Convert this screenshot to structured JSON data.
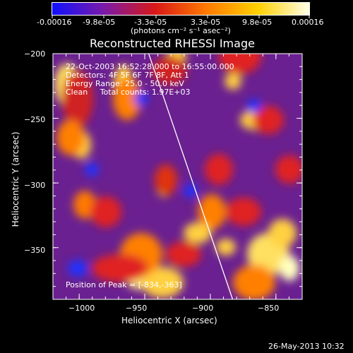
{
  "colorbar": {
    "tick_labels": [
      "-0.00016",
      "-9.8e-05",
      "-3.3e-05",
      "3.3e-05",
      "9.8e-05",
      "0.00016"
    ],
    "unit_label": "(photons cm⁻² s⁻¹ asec⁻²)",
    "colors": [
      "#1010ff",
      "#7a1aa8",
      "#d81818",
      "#ff7a00",
      "#ffd000",
      "#ffffe8"
    ]
  },
  "chart_data": {
    "type": "heatmap",
    "title": "Reconstructed RHESSI Image",
    "xlabel": "Heliocentric X (arcsec)",
    "ylabel": "Heliocentric Y (arcsec)",
    "xlim": [
      -1020,
      -830
    ],
    "ylim": [
      -390,
      -200
    ],
    "x_ticks": [
      -1000,
      -950,
      -900,
      -850
    ],
    "y_ticks": [
      -200,
      -250,
      -300,
      -350
    ],
    "x_tick_labels": [
      "−1000",
      "−950",
      "−900",
      "−850"
    ],
    "y_tick_labels": [
      "−200",
      "−250",
      "−300",
      "−350"
    ],
    "annotations": [
      "22-Oct-2003 16:52:28.000 to 16:55:00.000",
      "Detectors: 4F 5F 6F 7F 8F, Att 1",
      "Energy Range: 25.0 - 50.0 keV",
      "Clean     Total counts: 1.97E+03"
    ],
    "peak_label": "Position of Peak = [-834,-363]",
    "peak_position": [
      -834,
      -363
    ],
    "limb_line": [
      [
        -947,
        -200
      ],
      [
        -883,
        -390
      ]
    ],
    "colormap": "red-temperature",
    "value_range": [
      -0.00016,
      0.00016
    ]
  },
  "footer": {
    "timestamp": "26-May-2013 10:32"
  }
}
